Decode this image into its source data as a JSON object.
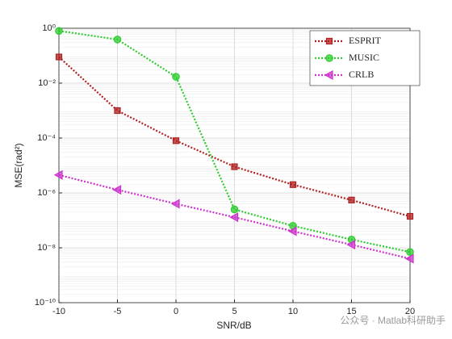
{
  "chart_data": {
    "type": "line",
    "x": [
      -10,
      -5,
      0,
      5,
      10,
      15,
      20
    ],
    "xlabel": "SNR/dB",
    "ylabel": "MSE(rad²)",
    "xlim": [
      -10,
      20
    ],
    "xticks": [
      -10,
      -5,
      0,
      5,
      10,
      15,
      20
    ],
    "ylim": [
      1e-10,
      1
    ],
    "yscale": "log",
    "yticks": [
      {
        "value": 1,
        "label": "10⁰"
      },
      {
        "value": 0.01,
        "label": "10⁻²"
      },
      {
        "value": 0.0001,
        "label": "10⁻⁴"
      },
      {
        "value": 1e-06,
        "label": "10⁻⁶"
      },
      {
        "value": 1e-08,
        "label": "10⁻⁸"
      },
      {
        "value": 1e-10,
        "label": "10⁻¹⁰"
      }
    ],
    "grid": true,
    "legend": "top-right",
    "series": [
      {
        "name": "ESPRIT",
        "color": "#b02020",
        "marker": "square",
        "values": [
          0.09,
          0.001,
          8e-05,
          9e-06,
          2e-06,
          5.5e-07,
          1.4e-07
        ]
      },
      {
        "name": "MUSIC",
        "color": "#2ecc2e",
        "marker": "circle",
        "values": [
          0.8,
          0.39,
          0.017,
          2.5e-07,
          6.3e-08,
          2e-08,
          7e-09
        ]
      },
      {
        "name": "CRLB",
        "color": "#cc33cc",
        "marker": "triangle-left",
        "values": [
          4.5e-06,
          1.3e-06,
          4e-07,
          1.3e-07,
          4e-08,
          1.3e-08,
          4e-09
        ]
      }
    ],
    "watermark": "公众号 · Matlab科研助手"
  }
}
